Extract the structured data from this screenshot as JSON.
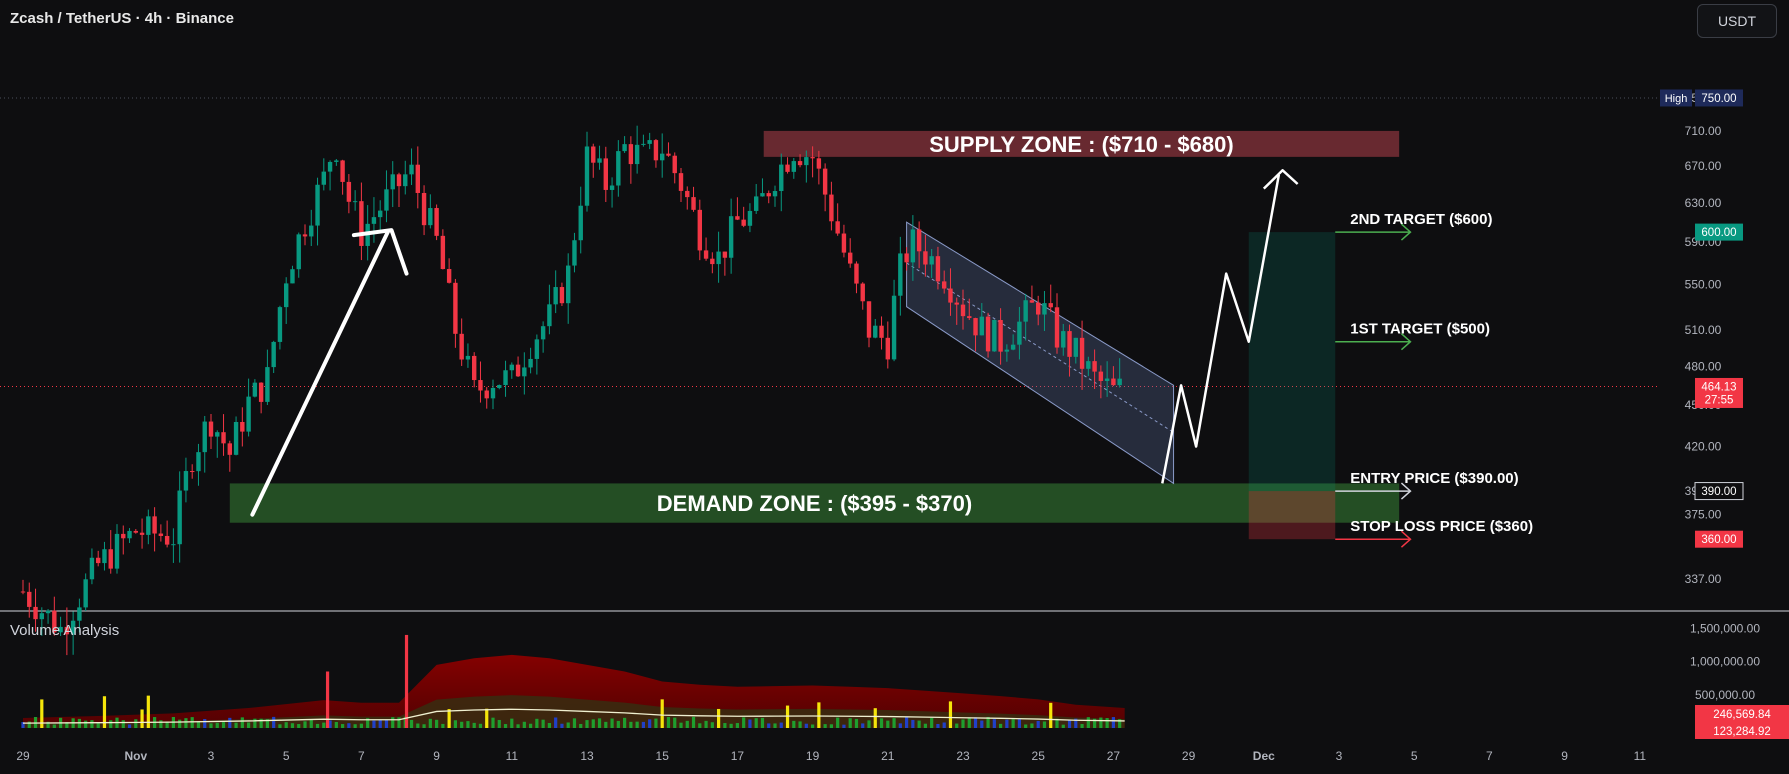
{
  "header": {
    "title": "Zcash / TetherUS · 4h · Binance",
    "currency": "USDT"
  },
  "volume_panel": {
    "label": "Volume Analysis"
  },
  "chart_data": [
    {
      "type": "candlestick",
      "title": "Zcash / TetherUS · 4h · Binance",
      "x_axis": {
        "ticks": [
          "29",
          "Nov",
          "3",
          "5",
          "7",
          "9",
          "11",
          "13",
          "15",
          "17",
          "19",
          "21",
          "23",
          "25",
          "27",
          "29",
          "Dec",
          "3",
          "5",
          "7",
          "9",
          "11"
        ]
      },
      "y_axis": {
        "range": [
          320,
          760
        ],
        "ticks": [
          "337.00",
          "375.00",
          "390.00",
          "420.00",
          "450.00",
          "480.00",
          "510.00",
          "550.00",
          "590.00",
          "630.00",
          "670.00",
          "710.00",
          "750.00"
        ],
        "scale": "log"
      },
      "price_labels": [
        {
          "label": "High",
          "value": "750.00",
          "price": 750,
          "color": "#1e2a5a"
        },
        {
          "label": "",
          "value": "600.00",
          "price": 600,
          "color": "#089981"
        },
        {
          "label": "",
          "value": "464.13",
          "sub": "27:55",
          "price": 464.13,
          "color": "#f23645"
        },
        {
          "label": "",
          "value": "390.00",
          "price": 390,
          "color": "#0e0e10"
        },
        {
          "label": "",
          "value": "360.00",
          "price": 360,
          "color": "#f23645"
        }
      ],
      "close_path": [
        [
          0,
          330
        ],
        [
          0.5,
          320
        ],
        [
          1,
          310
        ],
        [
          2,
          345
        ],
        [
          3,
          365
        ],
        [
          4,
          362
        ],
        [
          4.5,
          415
        ],
        [
          5,
          440
        ],
        [
          5.5,
          415
        ],
        [
          6,
          452
        ],
        [
          6.5,
          470
        ],
        [
          7,
          560
        ],
        [
          7.5,
          610
        ],
        [
          8,
          655
        ],
        [
          8.3,
          700
        ],
        [
          8.6,
          640
        ],
        [
          9,
          600
        ],
        [
          9.5,
          625
        ],
        [
          10,
          650
        ],
        [
          10.3,
          665
        ],
        [
          10.7,
          620
        ],
        [
          11,
          590
        ],
        [
          11.5,
          510
        ],
        [
          12,
          460
        ],
        [
          12.5,
          470
        ],
        [
          13,
          470
        ],
        [
          13.5,
          500
        ],
        [
          14,
          520
        ],
        [
          14.5,
          560
        ],
        [
          15,
          680
        ],
        [
          15.5,
          650
        ],
        [
          16,
          690
        ],
        [
          16.5,
          680
        ],
        [
          17,
          690
        ],
        [
          17.5,
          650
        ],
        [
          18,
          600
        ],
        [
          18.5,
          575
        ],
        [
          19,
          610
        ],
        [
          19.5,
          620
        ],
        [
          20,
          660
        ],
        [
          20.5,
          690
        ],
        [
          21,
          680
        ],
        [
          21.5,
          620
        ],
        [
          22,
          560
        ],
        [
          22.5,
          510
        ],
        [
          23,
          500
        ],
        [
          23.3,
          560
        ],
        [
          23.6,
          590
        ],
        [
          24,
          580
        ],
        [
          24.5,
          560
        ],
        [
          25,
          530
        ],
        [
          25.5,
          510
        ],
        [
          26,
          500
        ],
        [
          26.5,
          515
        ],
        [
          27,
          535
        ],
        [
          27.5,
          505
        ],
        [
          28,
          490
        ],
        [
          28.5,
          470
        ],
        [
          29,
          460
        ],
        [
          29.3,
          464
        ]
      ],
      "annotations": [
        {
          "kind": "zone",
          "text": "SUPPLY ZONE : ($710 - $680)",
          "top": 710,
          "bottom": 680
        },
        {
          "kind": "zone",
          "text": "DEMAND ZONE : ($395 - $370)",
          "top": 395,
          "bottom": 370
        },
        {
          "kind": "target",
          "text": "2ND TARGET ($600)",
          "price": 600
        },
        {
          "kind": "target",
          "text": "1ST TARGET ($500)",
          "price": 500
        },
        {
          "kind": "entry",
          "text": "ENTRY PRICE ($390.00)",
          "price": 390
        },
        {
          "kind": "stop",
          "text": "STOP LOSS PRICE ($360)",
          "price": 360
        }
      ]
    },
    {
      "type": "bar",
      "title": "Volume Analysis",
      "y_axis": {
        "ticks": [
          "1,500,000.00",
          "1,000,000.00",
          "500,000.00"
        ],
        "range": [
          0,
          1700000
        ]
      },
      "last_values": [
        "246,569.84",
        "123,284.92"
      ],
      "volume_profile": [
        [
          0,
          150000
        ],
        [
          2,
          180000
        ],
        [
          4,
          220000
        ],
        [
          6,
          300000
        ],
        [
          8,
          420000
        ],
        [
          9,
          380000
        ],
        [
          10,
          380000
        ],
        [
          11,
          950000
        ],
        [
          12,
          1050000
        ],
        [
          13,
          1100000
        ],
        [
          14,
          1050000
        ],
        [
          15,
          950000
        ],
        [
          16,
          850000
        ],
        [
          17,
          700000
        ],
        [
          18,
          650000
        ],
        [
          19,
          620000
        ],
        [
          20,
          630000
        ],
        [
          21,
          640000
        ],
        [
          22,
          620000
        ],
        [
          23,
          600000
        ],
        [
          24,
          560000
        ],
        [
          25,
          520000
        ],
        [
          26,
          480000
        ],
        [
          27,
          430000
        ],
        [
          28,
          350000
        ],
        [
          29.3,
          300000
        ]
      ],
      "spikes": [
        {
          "day": 8.1,
          "value": 850000,
          "color": "#f23645"
        },
        {
          "day": 10.2,
          "value": 1400000,
          "color": "#f23645"
        }
      ]
    }
  ]
}
